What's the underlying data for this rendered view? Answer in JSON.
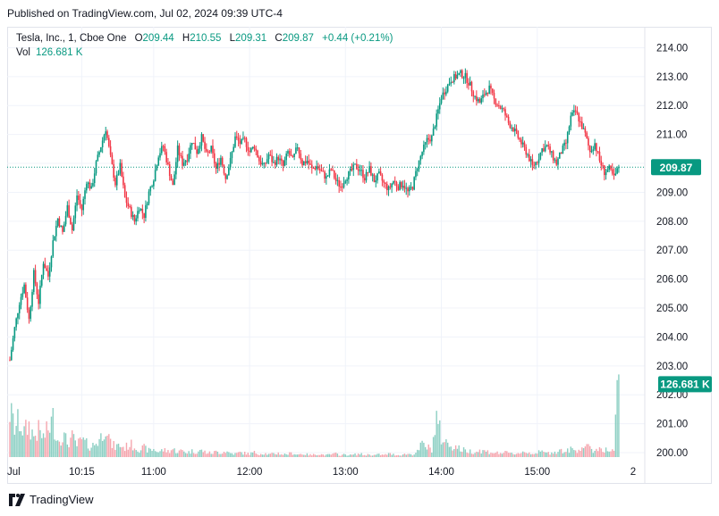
{
  "published": "Published on TradingView.com, Jul 02, 2024 09:39 UTC-4",
  "legend": {
    "symbol": "Tesla, Inc., 1, Cboe One",
    "o_label": "O",
    "o": "209.44",
    "h_label": "H",
    "h": "210.55",
    "l_label": "L",
    "l": "209.31",
    "c_label": "C",
    "c": "209.87",
    "change": "+0.44 (+0.21%)",
    "vol_label": "Vol",
    "vol": "126.681 K"
  },
  "footer": {
    "brand": "TradingView",
    "logo_icon": "tradingview-logo-icon"
  },
  "colors": {
    "up": "#089981",
    "down": "#f23645",
    "up_vol": "#8ccfc3",
    "down_vol": "#f5a6ae",
    "grid": "#f0f3fa",
    "text": "#131722"
  },
  "chart_data": {
    "type": "candlestick",
    "price_axis": {
      "ticks": [
        200,
        201,
        202,
        203,
        204,
        205,
        206,
        207,
        208,
        209,
        210,
        211,
        212,
        213,
        214
      ],
      "ylim": [
        199.6,
        214.6
      ],
      "labels": [
        "200.00",
        "201.00",
        "202.00",
        "203.00",
        "204.00",
        "205.00",
        "206.00",
        "207.00",
        "208.00",
        "209.00",
        "210.00",
        "211.00",
        "212.00",
        "213.00",
        "214.00"
      ]
    },
    "time_axis": {
      "labels": [
        "Jul",
        "10:15",
        "11:00",
        "12:00",
        "13:00",
        "14:00",
        "15:00",
        "2"
      ],
      "minutes_from_open": [
        0,
        45,
        90,
        150,
        210,
        270,
        330,
        390
      ]
    },
    "current_price": {
      "value": 209.87,
      "label": "209.87"
    },
    "current_volume": {
      "value": 126.681,
      "label": "126.681 K"
    },
    "price_path": [
      [
        0,
        203.2
      ],
      [
        3,
        204.3
      ],
      [
        6,
        205.2
      ],
      [
        9,
        205.8
      ],
      [
        12,
        204.6
      ],
      [
        15,
        206.2
      ],
      [
        18,
        205.2
      ],
      [
        21,
        206.6
      ],
      [
        24,
        206.1
      ],
      [
        27,
        207.3
      ],
      [
        30,
        208.1
      ],
      [
        33,
        207.6
      ],
      [
        36,
        208.5
      ],
      [
        39,
        207.7
      ],
      [
        42,
        208.9
      ],
      [
        45,
        208.4
      ],
      [
        48,
        209.4
      ],
      [
        51,
        209.1
      ],
      [
        54,
        210.0
      ],
      [
        57,
        210.6
      ],
      [
        60,
        211.2
      ],
      [
        63,
        210.2
      ],
      [
        66,
        209.3
      ],
      [
        69,
        209.9
      ],
      [
        72,
        208.8
      ],
      [
        75,
        208.4
      ],
      [
        78,
        208.0
      ],
      [
        81,
        208.5
      ],
      [
        84,
        208.2
      ],
      [
        87,
        209.0
      ],
      [
        90,
        209.5
      ],
      [
        93,
        210.3
      ],
      [
        96,
        210.6
      ],
      [
        99,
        209.9
      ],
      [
        102,
        209.2
      ],
      [
        105,
        210.5
      ],
      [
        108,
        210.0
      ],
      [
        111,
        210.2
      ],
      [
        114,
        210.8
      ],
      [
        117,
        210.4
      ],
      [
        120,
        210.9
      ],
      [
        123,
        210.3
      ],
      [
        126,
        210.5
      ],
      [
        129,
        209.8
      ],
      [
        132,
        210.2
      ],
      [
        135,
        209.5
      ],
      [
        138,
        210.1
      ],
      [
        141,
        210.9
      ],
      [
        144,
        210.7
      ],
      [
        147,
        210.8
      ],
      [
        150,
        210.4
      ],
      [
        153,
        210.6
      ],
      [
        156,
        210.1
      ],
      [
        159,
        209.9
      ],
      [
        162,
        210.3
      ],
      [
        165,
        210.0
      ],
      [
        168,
        210.2
      ],
      [
        171,
        209.9
      ],
      [
        174,
        210.4
      ],
      [
        177,
        210.1
      ],
      [
        180,
        210.6
      ],
      [
        183,
        210.0
      ],
      [
        186,
        210.1
      ],
      [
        189,
        209.8
      ],
      [
        192,
        209.9
      ],
      [
        195,
        209.7
      ],
      [
        198,
        209.5
      ],
      [
        201,
        209.8
      ],
      [
        204,
        209.4
      ],
      [
        207,
        209.2
      ],
      [
        210,
        209.5
      ],
      [
        213,
        209.7
      ],
      [
        216,
        209.9
      ],
      [
        219,
        209.8
      ],
      [
        222,
        209.5
      ],
      [
        225,
        209.8
      ],
      [
        228,
        209.4
      ],
      [
        231,
        209.6
      ],
      [
        234,
        209.3
      ],
      [
        237,
        209.1
      ],
      [
        240,
        209.4
      ],
      [
        243,
        209.2
      ],
      [
        246,
        209.3
      ],
      [
        249,
        209.0
      ],
      [
        252,
        209.2
      ],
      [
        255,
        209.9
      ],
      [
        258,
        210.4
      ],
      [
        261,
        210.8
      ],
      [
        264,
        210.9
      ],
      [
        267,
        211.6
      ],
      [
        270,
        212.3
      ],
      [
        273,
        212.6
      ],
      [
        276,
        212.9
      ],
      [
        279,
        213.0
      ],
      [
        282,
        213.1
      ],
      [
        285,
        213.0
      ],
      [
        288,
        212.7
      ],
      [
        291,
        212.3
      ],
      [
        294,
        212.1
      ],
      [
        297,
        212.4
      ],
      [
        300,
        212.6
      ],
      [
        303,
        212.2
      ],
      [
        306,
        212.0
      ],
      [
        309,
        211.8
      ],
      [
        312,
        211.4
      ],
      [
        315,
        211.2
      ],
      [
        318,
        210.9
      ],
      [
        321,
        210.6
      ],
      [
        324,
        210.3
      ],
      [
        327,
        209.9
      ],
      [
        330,
        210.1
      ],
      [
        333,
        210.5
      ],
      [
        336,
        210.6
      ],
      [
        339,
        210.3
      ],
      [
        342,
        210.0
      ],
      [
        345,
        210.4
      ],
      [
        348,
        210.7
      ],
      [
        351,
        211.6
      ],
      [
        354,
        211.8
      ],
      [
        357,
        211.4
      ],
      [
        360,
        211.0
      ],
      [
        363,
        210.4
      ],
      [
        366,
        210.7
      ],
      [
        369,
        210.1
      ],
      [
        372,
        209.7
      ],
      [
        375,
        209.8
      ],
      [
        378,
        209.5
      ],
      [
        381,
        209.87
      ]
    ],
    "volume_axis": {
      "max_thousand": 130
    },
    "volume_path": [
      [
        0,
        70
      ],
      [
        3,
        45
      ],
      [
        6,
        55
      ],
      [
        9,
        38
      ],
      [
        12,
        48
      ],
      [
        15,
        32
      ],
      [
        18,
        40
      ],
      [
        21,
        30
      ],
      [
        24,
        42
      ],
      [
        27,
        58
      ],
      [
        30,
        26
      ],
      [
        33,
        35
      ],
      [
        36,
        22
      ],
      [
        39,
        30
      ],
      [
        42,
        18
      ],
      [
        45,
        26
      ],
      [
        48,
        20
      ],
      [
        51,
        16
      ],
      [
        54,
        22
      ],
      [
        57,
        30
      ],
      [
        60,
        55
      ],
      [
        63,
        20
      ],
      [
        66,
        16
      ],
      [
        69,
        18
      ],
      [
        72,
        14
      ],
      [
        75,
        20
      ],
      [
        78,
        16
      ],
      [
        81,
        12
      ],
      [
        84,
        14
      ],
      [
        87,
        10
      ],
      [
        90,
        12
      ],
      [
        93,
        8
      ],
      [
        96,
        11
      ],
      [
        99,
        9
      ],
      [
        102,
        12
      ],
      [
        105,
        8
      ],
      [
        108,
        10
      ],
      [
        111,
        7
      ],
      [
        114,
        9
      ],
      [
        117,
        8
      ],
      [
        120,
        10
      ],
      [
        123,
        7
      ],
      [
        126,
        6
      ],
      [
        129,
        8
      ],
      [
        132,
        7
      ],
      [
        135,
        9
      ],
      [
        138,
        6
      ],
      [
        141,
        5
      ],
      [
        144,
        7
      ],
      [
        147,
        6
      ],
      [
        150,
        5
      ],
      [
        153,
        7
      ],
      [
        156,
        5
      ],
      [
        159,
        6
      ],
      [
        162,
        4
      ],
      [
        165,
        5
      ],
      [
        168,
        6
      ],
      [
        171,
        4
      ],
      [
        174,
        5
      ],
      [
        177,
        6
      ],
      [
        180,
        4
      ],
      [
        183,
        5
      ],
      [
        186,
        4
      ],
      [
        189,
        3
      ],
      [
        192,
        5
      ],
      [
        195,
        4
      ],
      [
        198,
        3
      ],
      [
        201,
        4
      ],
      [
        204,
        5
      ],
      [
        207,
        3
      ],
      [
        210,
        4
      ],
      [
        213,
        3
      ],
      [
        216,
        4
      ],
      [
        219,
        5
      ],
      [
        222,
        3
      ],
      [
        225,
        4
      ],
      [
        228,
        3
      ],
      [
        231,
        4
      ],
      [
        234,
        3
      ],
      [
        237,
        5
      ],
      [
        240,
        4
      ],
      [
        243,
        3
      ],
      [
        246,
        4
      ],
      [
        249,
        5
      ],
      [
        252,
        4
      ],
      [
        255,
        8
      ],
      [
        258,
        20
      ],
      [
        261,
        15
      ],
      [
        264,
        12
      ],
      [
        267,
        58
      ],
      [
        270,
        30
      ],
      [
        273,
        22
      ],
      [
        276,
        18
      ],
      [
        279,
        16
      ],
      [
        282,
        12
      ],
      [
        285,
        10
      ],
      [
        288,
        9
      ],
      [
        291,
        8
      ],
      [
        294,
        10
      ],
      [
        297,
        9
      ],
      [
        300,
        8
      ],
      [
        303,
        7
      ],
      [
        306,
        6
      ],
      [
        309,
        7
      ],
      [
        312,
        6
      ],
      [
        315,
        5
      ],
      [
        318,
        6
      ],
      [
        321,
        8
      ],
      [
        324,
        7
      ],
      [
        327,
        6
      ],
      [
        330,
        7
      ],
      [
        333,
        8
      ],
      [
        336,
        6
      ],
      [
        339,
        7
      ],
      [
        342,
        9
      ],
      [
        345,
        10
      ],
      [
        348,
        8
      ],
      [
        351,
        12
      ],
      [
        354,
        10
      ],
      [
        357,
        14
      ],
      [
        360,
        18
      ],
      [
        363,
        12
      ],
      [
        366,
        10
      ],
      [
        369,
        14
      ],
      [
        372,
        12
      ],
      [
        375,
        9
      ],
      [
        378,
        10
      ],
      [
        381,
        126.681
      ]
    ]
  }
}
